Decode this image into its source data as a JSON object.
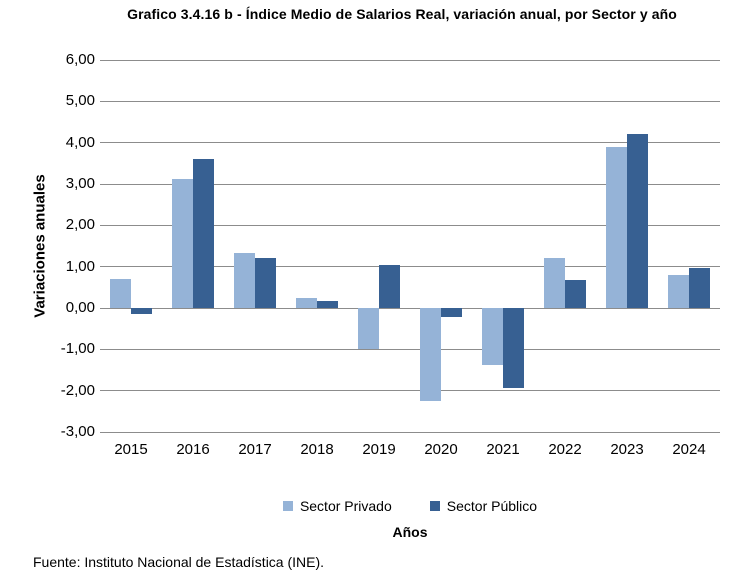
{
  "footer": "Fuente: Instituto Nacional de Estadística (INE).",
  "chart_data": {
    "type": "bar",
    "title": "Grafico 3.4.16 b - Índice Medio de Salarios Real, variación anual, por Sector y año",
    "xlabel": "Años",
    "ylabel": "Variaciones anuales",
    "categories": [
      "2015",
      "2016",
      "2017",
      "2018",
      "2019",
      "2020",
      "2021",
      "2022",
      "2023",
      "2024"
    ],
    "series": [
      {
        "name": "Sector Privado",
        "color": "#95B3D7",
        "values": [
          0.7,
          3.13,
          1.32,
          0.23,
          -0.98,
          -2.25,
          -1.37,
          1.22,
          3.9,
          0.8
        ]
      },
      {
        "name": "Sector Público",
        "color": "#376092",
        "values": [
          -0.15,
          3.6,
          1.21,
          0.16,
          1.04,
          -0.22,
          -1.93,
          0.67,
          4.22,
          0.96
        ]
      }
    ],
    "ylim": [
      -3,
      6
    ],
    "ytick_step": 1,
    "ytick_labels": [
      "6,00",
      "5,00",
      "4,00",
      "3,00",
      "2,00",
      "1,00",
      "0,00",
      "-1,00",
      "-2,00",
      "-3,00"
    ],
    "decimal_format": "comma",
    "grid": true,
    "gridline_color": "#8c8c8c",
    "legend_position": "bottom"
  }
}
